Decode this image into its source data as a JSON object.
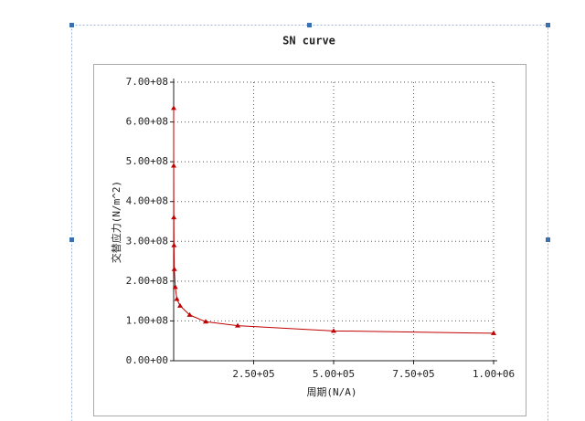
{
  "chart_data": {
    "type": "line",
    "title": "SN curve",
    "x_label": "周期(N/A)",
    "y_label": "交替应力(N/m^2)",
    "x": [
      10,
      100,
      500,
      1000,
      2000,
      5000,
      10000,
      20000,
      50000,
      100000,
      200000,
      500000,
      1000000
    ],
    "series": [
      {
        "color": "#c00000",
        "values": [
          635000000,
          490000000,
          360000000,
          290000000,
          230000000,
          185000000,
          155000000,
          138000000,
          115000000,
          98000000,
          88000000,
          75000000,
          69000000
        ]
      }
    ],
    "xlim": [
      0,
      1000000
    ],
    "ylim": [
      0,
      700000000
    ],
    "xticks": [
      {
        "value": 250000,
        "label": "2.50+05"
      },
      {
        "value": 500000,
        "label": "5.00+05"
      },
      {
        "value": 750000,
        "label": "7.50+05"
      },
      {
        "value": 1000000,
        "label": "1.00+06"
      }
    ],
    "yticks": [
      {
        "value": 0,
        "label": "0.00+00"
      },
      {
        "value": 100000000,
        "label": "1.00+08"
      },
      {
        "value": 200000000,
        "label": "2.00+08"
      },
      {
        "value": 300000000,
        "label": "3.00+08"
      },
      {
        "value": 400000000,
        "label": "4.00+08"
      },
      {
        "value": 500000000,
        "label": "5.00+08"
      },
      {
        "value": 600000000,
        "label": "6.00+08"
      },
      {
        "value": 700000000,
        "label": "7.00+08"
      }
    ],
    "grid": true
  }
}
